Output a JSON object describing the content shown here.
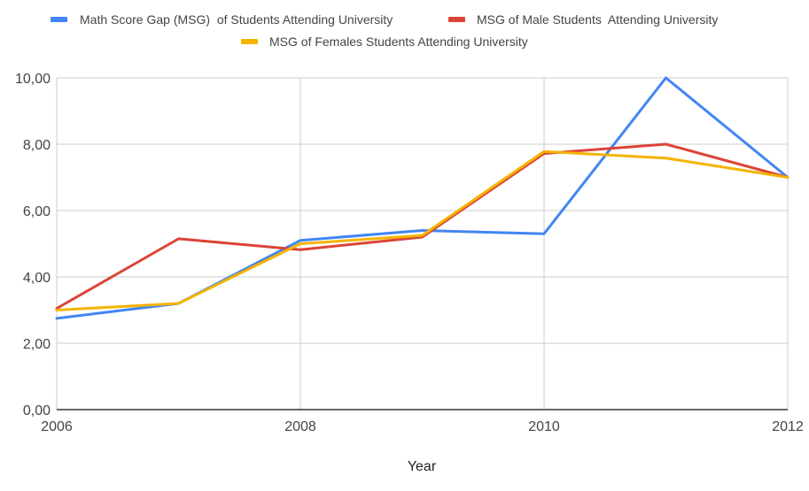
{
  "chart_data": {
    "type": "line",
    "title": "",
    "xlabel": "Year",
    "ylabel": "",
    "x": [
      2006,
      2007,
      2008,
      2009,
      2010,
      2011,
      2012
    ],
    "x_tick_labels": [
      "2006",
      "2008",
      "2010",
      "2012"
    ],
    "x_tick_values": [
      2006,
      2008,
      2010,
      2012
    ],
    "xlim": [
      2006,
      2012
    ],
    "ylim": [
      0,
      10
    ],
    "y_tick_labels": [
      "0,00",
      "2,00",
      "4,00",
      "6,00",
      "8,00",
      "10,00"
    ],
    "y_tick_values": [
      0,
      2,
      4,
      6,
      8,
      10
    ],
    "grid": true,
    "legend_position": "top",
    "series": [
      {
        "name": "Math Score Gap (MSG)  of Students Attending University",
        "color": "#4285F4",
        "values": [
          2.75,
          3.2,
          5.1,
          5.4,
          5.3,
          10.0,
          7.0
        ]
      },
      {
        "name": "MSG of Male Students  Attending University",
        "color": "#DB4437",
        "values": [
          3.05,
          5.15,
          4.82,
          5.2,
          7.72,
          8.0,
          7.0
        ]
      },
      {
        "name": "MSG of Females Students Attending University",
        "color": "#F4B400",
        "values": [
          3.0,
          3.2,
          5.0,
          5.25,
          7.78,
          7.58,
          7.0
        ]
      }
    ]
  }
}
